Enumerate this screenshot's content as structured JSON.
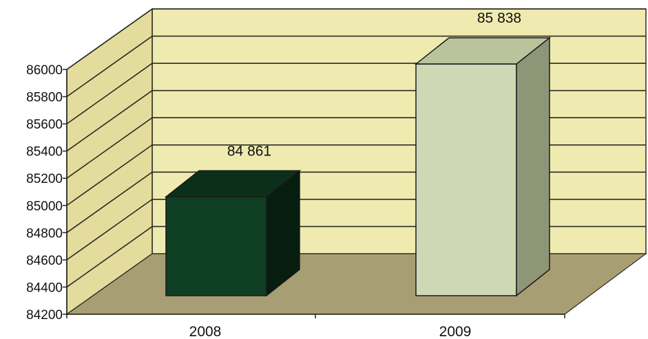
{
  "chart_data": {
    "type": "bar",
    "style": "3d-column",
    "categories": [
      "2008",
      "2009"
    ],
    "values": [
      84861,
      85838
    ],
    "value_labels": [
      "84 861",
      "85 838"
    ],
    "ylim": [
      84200,
      86000
    ],
    "yticks": [
      "84200",
      "84400",
      "84600",
      "84800",
      "85000",
      "85200",
      "85400",
      "85600",
      "85800",
      "86000"
    ],
    "title": "",
    "xlabel": "",
    "ylabel": "",
    "grid": true,
    "legend": "none",
    "colors": {
      "wall": "#efeab0",
      "side_wall": "#e3dc9c",
      "floor": "#a79e74",
      "grid": "#2a2a22",
      "bar_2008_front": "#0f3f22",
      "bar_2008_top": "#0b3019",
      "bar_2008_side": "#061d0f",
      "bar_2009_front": "#cfd8b4",
      "bar_2009_top": "#b9c49d",
      "bar_2009_side": "#8f9677"
    }
  }
}
